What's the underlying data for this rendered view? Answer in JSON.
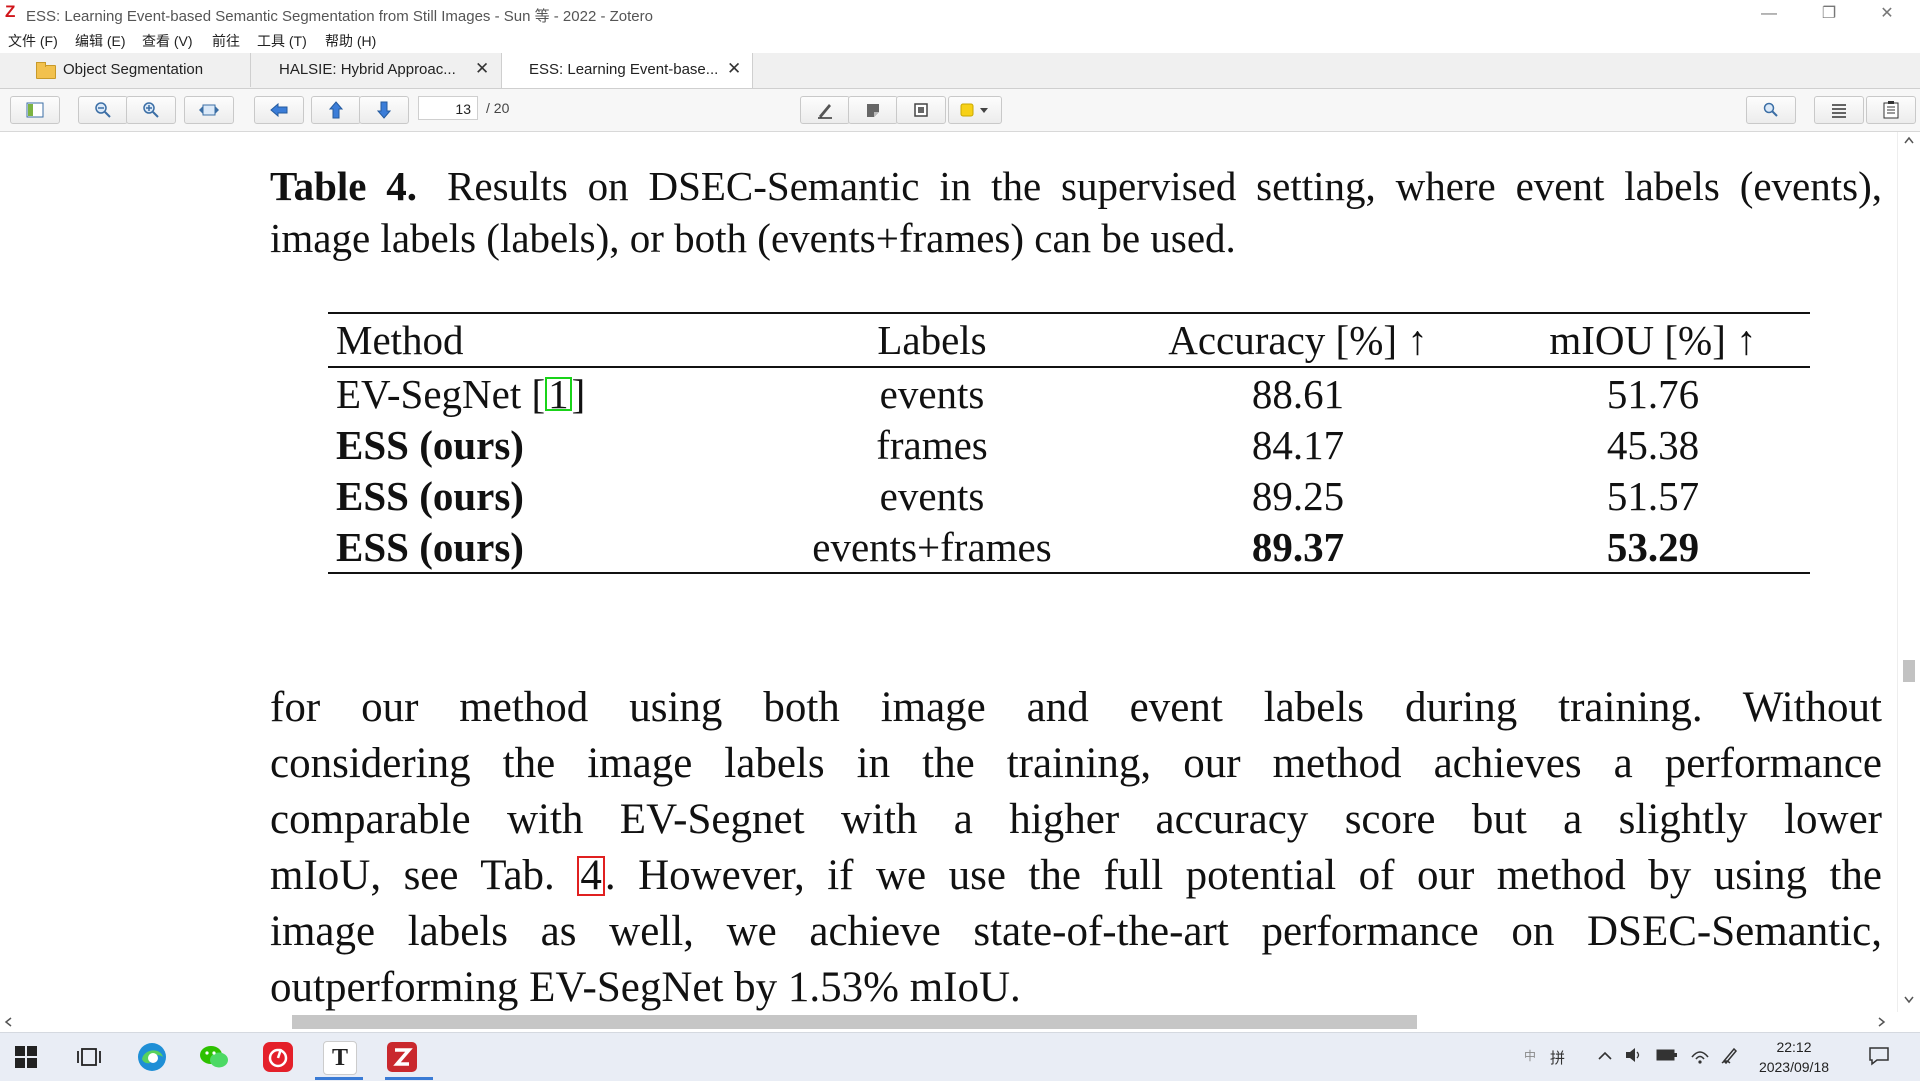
{
  "window": {
    "title": "ESS: Learning Event-based Semantic Segmentation from Still Images - Sun 等 - 2022 - Zotero",
    "minimize": "—",
    "restore": "❐",
    "close": "✕"
  },
  "menu": {
    "items": [
      "文件 (F)",
      "编辑 (E)",
      "查看 (V)",
      "前往",
      "工具 (T)",
      "帮助 (H)"
    ]
  },
  "tabs": [
    {
      "label": "Object Segmentation",
      "icon": "folder-icon"
    },
    {
      "label": "HALSIE: Hybrid Approac...",
      "close": "✕"
    },
    {
      "label": "ESS: Learning Event-base...",
      "close": "✕",
      "active": true
    }
  ],
  "toolbar": {
    "page_current": "13",
    "page_total": "/ 20",
    "highlight_color": "#f7d117"
  },
  "document": {
    "caption_label": "Table 4.",
    "caption_text": "Results on DSEC-Semantic in the supervised setting, where event labels (events), image labels (labels), or both (events+frames) can be used.",
    "table": {
      "headers": [
        "Method",
        "Labels",
        "Accuracy [%] ↑",
        "mIOU [%] ↑"
      ],
      "rows": [
        {
          "method": "EV-SegNet [",
          "cite": "1",
          "cite_close": "]",
          "labels": "events",
          "accuracy": "88.61",
          "miou": "51.76"
        },
        {
          "method": "ESS (ours)",
          "labels": "frames",
          "accuracy": "84.17",
          "miou": "45.38"
        },
        {
          "method": "ESS (ours)",
          "labels": "events",
          "accuracy": "89.25",
          "miou": "51.57"
        },
        {
          "method": "ESS (ours)",
          "labels": "events+frames",
          "accuracy": "89.37",
          "miou": "53.29"
        }
      ]
    },
    "body_lines": [
      "for our method using both image and event labels during training. Without",
      "considering the image labels in the training, our method achieves a performance",
      "comparable with EV-Segnet with a higher accuracy score but a slightly lower"
    ],
    "body_line4_pre": "mIoU, see Tab. ",
    "body_line4_cite": "4",
    "body_line4_post": ". However, if we use the full potential of our method by using the",
    "body_line5": "image labels as well, we achieve state-of-the-art performance on DSEC-Semantic,",
    "body_line6": "outperforming EV-SegNet by 1.53% mIoU."
  },
  "taskbar": {
    "text_app_glyph": "T",
    "ime_indicator": "拼",
    "ime_sub": "中",
    "time": "22:12",
    "date": "2023/09/18"
  }
}
